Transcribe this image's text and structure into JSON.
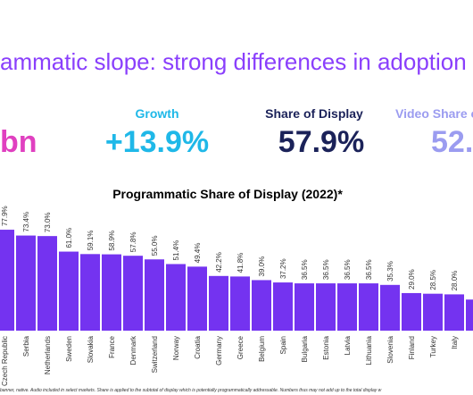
{
  "header": {
    "title": "ammatic slope: strong differences in adoption"
  },
  "kpis": [
    {
      "label": null,
      "value": "bn"
    },
    {
      "label": "Growth",
      "value": "+13.9%"
    },
    {
      "label": "Share of Display",
      "value": "57.9%"
    },
    {
      "label": "Video Share of",
      "value": "52."
    }
  ],
  "chart_data": {
    "type": "bar",
    "title": "Programmatic Share of Display (2022)*",
    "categories": [
      "Czech Republic",
      "Serbia",
      "Netherlands",
      "Sweden",
      "Slovakia",
      "France",
      "Denmark",
      "Switzerland",
      "Norway",
      "Croatia",
      "Germany",
      "Greece",
      "Belgium",
      "Spain",
      "Bulgaria",
      "Estonia",
      "Latvia",
      "Lithuania",
      "Slovenia",
      "Finland",
      "Turkey",
      "Italy",
      null
    ],
    "values": [
      77.9,
      73.4,
      73.0,
      61.0,
      59.1,
      58.9,
      57.8,
      55.0,
      51.4,
      49.4,
      42.2,
      41.8,
      39.0,
      37.2,
      36.5,
      36.5,
      36.5,
      36.5,
      35.3,
      29.0,
      28.5,
      28.0,
      24
    ],
    "value_labels": [
      "77.9%",
      "73.4%",
      "73.0%",
      "61.0%",
      "59.1%",
      "58.9%",
      "57.8%",
      "55.0%",
      "51.4%",
      "49.4%",
      "42.2%",
      "41.8%",
      "39.0%",
      "37.2%",
      "36.5%",
      "36.5%",
      "36.5%",
      "36.5%",
      "35.3%",
      "29.0%",
      "28.5%",
      "28.0%",
      null
    ],
    "color": "#7433f0",
    "ylim": [
      0,
      100
    ]
  },
  "footnote": "banner, native. Audio included in select markets. Share is applied to the subtotal of display which is potentially programmatically addressable. Numbers thus may not add up to the total display w"
}
